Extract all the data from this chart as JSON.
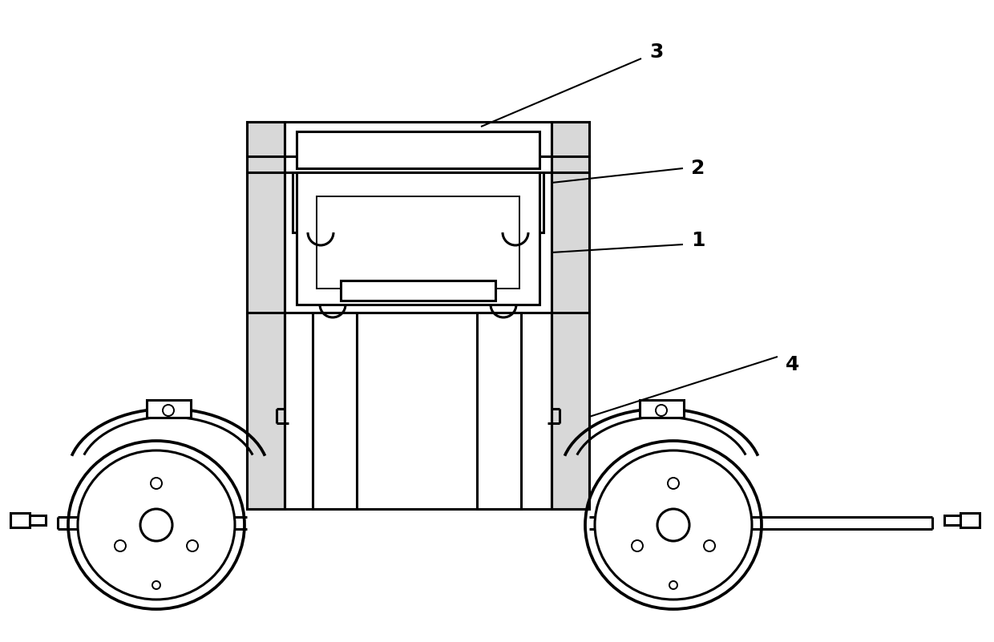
{
  "background_color": "#ffffff",
  "line_color": "#000000",
  "lw": 2.2,
  "tlw": 1.4,
  "label_fontsize": 18,
  "label_fontweight": "bold"
}
